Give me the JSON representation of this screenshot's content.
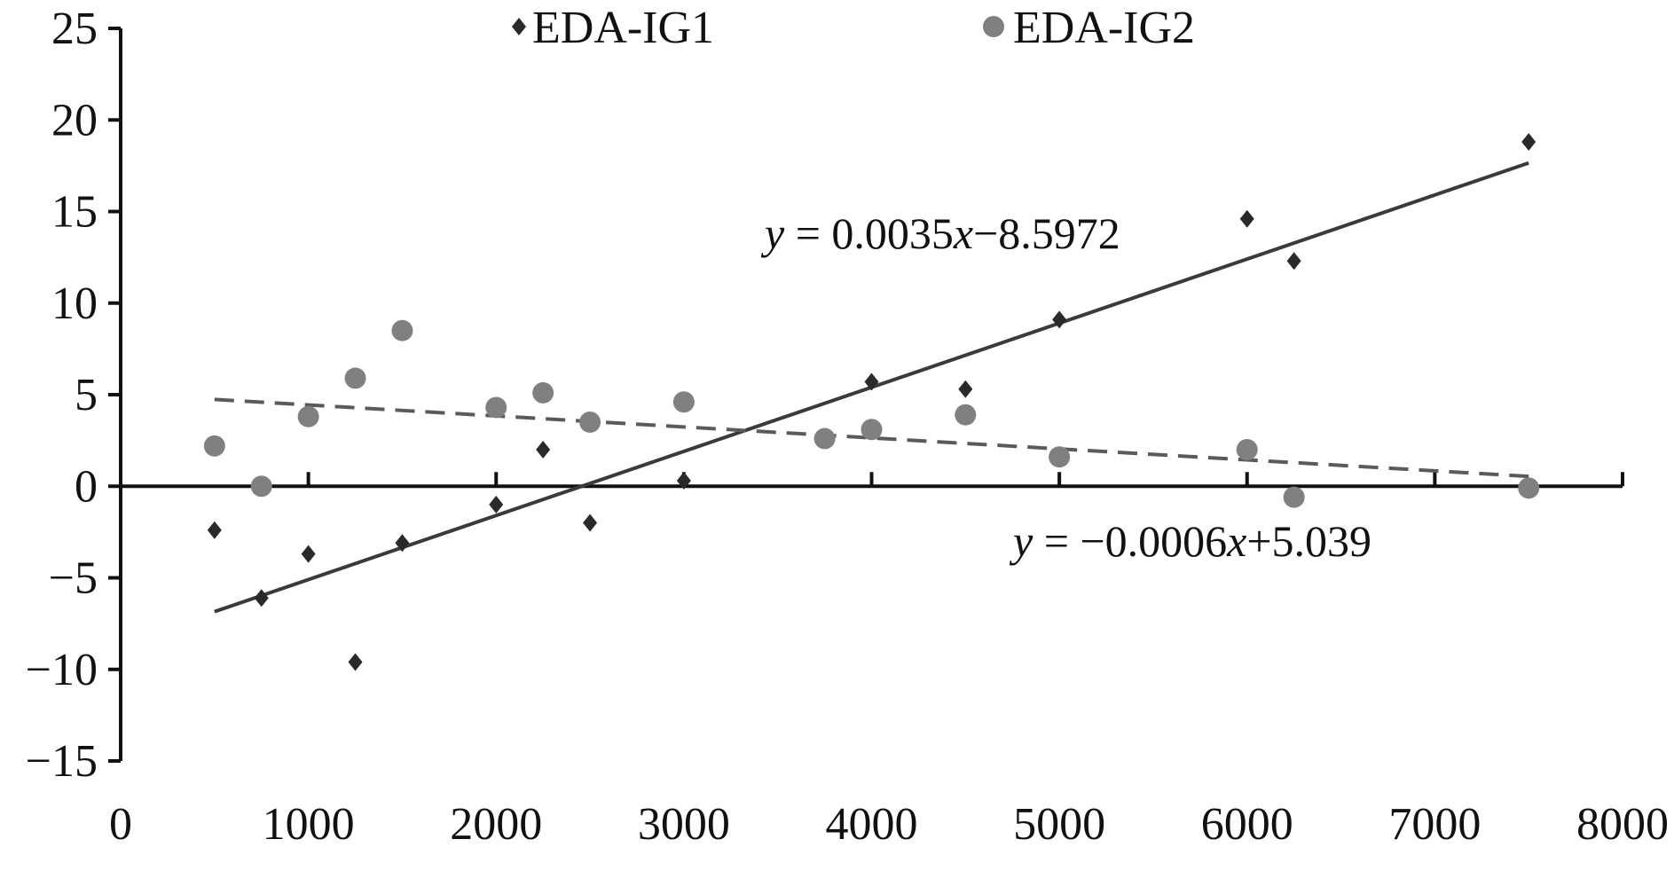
{
  "chart_data": {
    "type": "scatter",
    "xlim": [
      0,
      8000
    ],
    "ylim": [
      -15,
      25
    ],
    "x_ticks": [
      0,
      1000,
      2000,
      3000,
      4000,
      5000,
      6000,
      7000,
      8000
    ],
    "y_ticks": [
      -15,
      -10,
      -5,
      0,
      5,
      10,
      15,
      20,
      25
    ],
    "x_tick_labels": [
      "0",
      "1000",
      "2000",
      "3000",
      "4000",
      "5000",
      "6000",
      "7000",
      "8000"
    ],
    "y_tick_labels": [
      "−15",
      "−10",
      "−5",
      "0",
      "5",
      "10",
      "15",
      "20",
      "25"
    ],
    "grid": false,
    "legend_position": "top",
    "series": [
      {
        "name": "EDA-IG1",
        "marker": "diamond",
        "color": "#2a2a2a",
        "points": [
          [
            500,
            -2.4
          ],
          [
            750,
            -6.1
          ],
          [
            1000,
            -3.7
          ],
          [
            1250,
            -9.6
          ],
          [
            1500,
            -3.1
          ],
          [
            2000,
            -1.0
          ],
          [
            2250,
            2.0
          ],
          [
            2500,
            -2.0
          ],
          [
            3000,
            0.3
          ],
          [
            4000,
            5.7
          ],
          [
            4500,
            5.3
          ],
          [
            5000,
            9.1
          ],
          [
            6000,
            14.6
          ],
          [
            6250,
            12.3
          ],
          [
            7500,
            18.8
          ]
        ],
        "trendline": {
          "style": "solid",
          "slope": 0.0035,
          "intercept": -8.5972,
          "x_range": [
            500,
            7500
          ]
        },
        "equation": {
          "prefix": "y",
          "body": " = 0.0035",
          "var": "x",
          "suffix": "−8.5972"
        }
      },
      {
        "name": "EDA-IG2",
        "marker": "circle",
        "color": "#808080",
        "points": [
          [
            500,
            2.2
          ],
          [
            750,
            0.0
          ],
          [
            1000,
            3.8
          ],
          [
            1250,
            5.9
          ],
          [
            1500,
            8.5
          ],
          [
            2000,
            4.3
          ],
          [
            2250,
            5.1
          ],
          [
            2500,
            3.5
          ],
          [
            3000,
            4.6
          ],
          [
            3750,
            2.6
          ],
          [
            4000,
            3.1
          ],
          [
            4500,
            3.9
          ],
          [
            5000,
            1.6
          ],
          [
            6000,
            2.0
          ],
          [
            6250,
            -0.6
          ],
          [
            7500,
            -0.1
          ]
        ],
        "trendline": {
          "style": "dashed",
          "slope": -0.0006,
          "intercept": 5.039,
          "x_range": [
            500,
            7500
          ]
        },
        "equation": {
          "prefix": "y",
          "body": " = −0.0006",
          "var": "x",
          "suffix": "+5.039"
        }
      }
    ]
  }
}
